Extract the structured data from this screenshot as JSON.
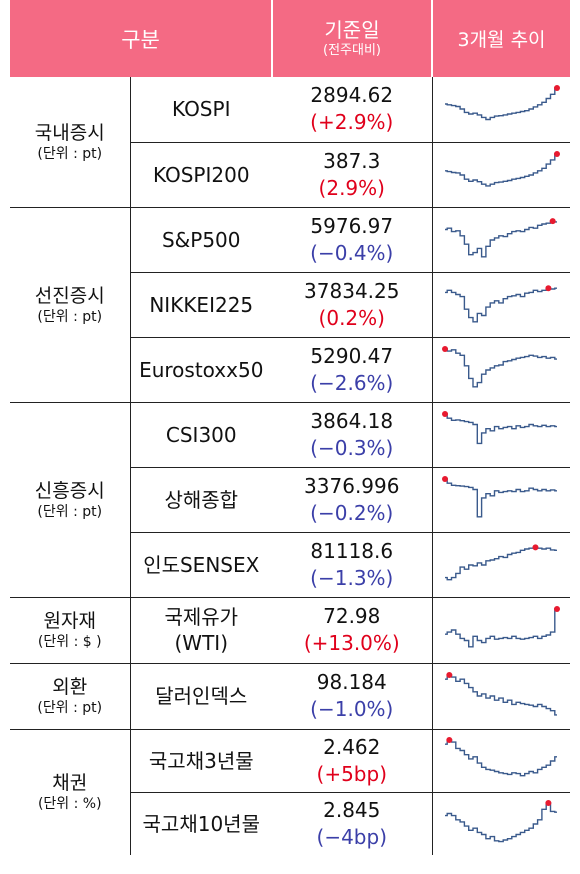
{
  "header": {
    "category": "구분",
    "base_date": "기준일",
    "base_date_sub": "(전주대비)",
    "trend": "3개월 추이"
  },
  "groups": [
    {
      "label": "국내증시",
      "unit": "(단위 : pt)"
    },
    {
      "label": "선진증시",
      "unit": "(단위 : pt)"
    },
    {
      "label": "신흥증시",
      "unit": "(단위 : pt)"
    },
    {
      "label": "원자재",
      "unit": "(단위 : $ )"
    },
    {
      "label": "외환",
      "unit": "(단위 : pt)"
    },
    {
      "label": "채권",
      "unit": "(단위 : %)"
    }
  ],
  "rows": [
    {
      "name": "KOSPI",
      "value": "2894.62",
      "change": "(+2.9%)",
      "dir": "up",
      "trend": [
        0.62,
        0.6,
        0.58,
        0.56,
        0.5,
        0.42,
        0.38,
        0.4,
        0.36,
        0.3,
        0.25,
        0.3,
        0.33,
        0.34,
        0.36,
        0.38,
        0.4,
        0.42,
        0.44,
        0.46,
        0.5,
        0.55,
        0.6,
        0.66,
        0.75,
        0.85,
        1.0
      ],
      "peak": "end"
    },
    {
      "name": "KOSPI200",
      "value": "387.3",
      "change": "(2.9%)",
      "dir": "up",
      "trend": [
        0.6,
        0.58,
        0.56,
        0.55,
        0.5,
        0.4,
        0.35,
        0.38,
        0.34,
        0.28,
        0.24,
        0.28,
        0.32,
        0.33,
        0.35,
        0.37,
        0.4,
        0.42,
        0.44,
        0.47,
        0.5,
        0.55,
        0.6,
        0.66,
        0.76,
        0.86,
        1.0
      ],
      "peak": "end"
    },
    {
      "name": "S&P500",
      "value": "5976.97",
      "change": "(−0.4%)",
      "dir": "down",
      "trend": [
        0.75,
        0.78,
        0.7,
        0.72,
        0.6,
        0.4,
        0.15,
        0.2,
        0.3,
        0.1,
        0.35,
        0.5,
        0.55,
        0.6,
        0.58,
        0.65,
        0.7,
        0.72,
        0.7,
        0.75,
        0.8,
        0.78,
        0.85,
        0.88,
        0.9,
        0.95,
        0.93
      ],
      "peak": "end"
    },
    {
      "name": "NIKKEI225",
      "value": "37834.25",
      "change": "(0.2%)",
      "dir": "up",
      "trend": [
        0.8,
        0.85,
        0.8,
        0.75,
        0.7,
        0.4,
        0.2,
        0.1,
        0.3,
        0.25,
        0.45,
        0.55,
        0.6,
        0.55,
        0.65,
        0.7,
        0.72,
        0.75,
        0.7,
        0.78,
        0.8,
        0.85,
        0.82,
        0.85,
        0.9,
        0.88,
        0.9
      ],
      "peak": "late"
    },
    {
      "name": "Eurostoxx50",
      "value": "5290.47",
      "change": "(−2.6%)",
      "dir": "down",
      "trend": [
        1.0,
        0.95,
        0.98,
        0.9,
        0.85,
        0.6,
        0.3,
        0.1,
        0.2,
        0.4,
        0.5,
        0.55,
        0.6,
        0.62,
        0.7,
        0.72,
        0.75,
        0.78,
        0.8,
        0.82,
        0.85,
        0.83,
        0.8,
        0.82,
        0.78,
        0.8,
        0.76
      ],
      "peak": "start"
    },
    {
      "name": "CSI300",
      "value": "3864.18",
      "change": "(−0.3%)",
      "dir": "down",
      "trend": [
        1.0,
        0.9,
        0.85,
        0.86,
        0.84,
        0.82,
        0.8,
        0.75,
        0.3,
        0.55,
        0.65,
        0.6,
        0.7,
        0.65,
        0.68,
        0.7,
        0.65,
        0.72,
        0.68,
        0.7,
        0.75,
        0.72,
        0.7,
        0.73,
        0.7,
        0.72,
        0.7
      ],
      "peak": "start"
    },
    {
      "name": "상해종합",
      "value": "3376.996",
      "change": "(−0.2%)",
      "dir": "down",
      "trend": [
        1.0,
        0.9,
        0.85,
        0.84,
        0.83,
        0.82,
        0.8,
        0.75,
        0.1,
        0.55,
        0.65,
        0.6,
        0.72,
        0.68,
        0.7,
        0.72,
        0.7,
        0.75,
        0.7,
        0.72,
        0.78,
        0.75,
        0.72,
        0.75,
        0.72,
        0.74,
        0.72
      ],
      "peak": "start"
    },
    {
      "name": "인도SENSEX",
      "value": "81118.6",
      "change": "(−1.3%)",
      "dir": "down",
      "trend": [
        0.2,
        0.15,
        0.2,
        0.3,
        0.45,
        0.4,
        0.5,
        0.48,
        0.55,
        0.5,
        0.6,
        0.62,
        0.65,
        0.7,
        0.68,
        0.75,
        0.78,
        0.8,
        0.85,
        0.88,
        0.9,
        0.92,
        0.9,
        0.88,
        0.9,
        0.86,
        0.85
      ],
      "peak": "late"
    },
    {
      "name": "국제유가\n(WTI)",
      "value": "72.98",
      "change": "(+13.0%)",
      "dir": "up",
      "trend": [
        0.4,
        0.45,
        0.5,
        0.4,
        0.3,
        0.25,
        0.1,
        0.35,
        0.25,
        0.2,
        0.3,
        0.35,
        0.28,
        0.3,
        0.32,
        0.3,
        0.35,
        0.3,
        0.28,
        0.3,
        0.32,
        0.35,
        0.3,
        0.35,
        0.38,
        0.45,
        1.0
      ],
      "peak": "end"
    },
    {
      "name": "달러인덱스",
      "value": "98.184",
      "change": "(−1.0%)",
      "dir": "down",
      "trend": [
        0.9,
        1.0,
        0.95,
        0.85,
        0.9,
        0.8,
        0.7,
        0.6,
        0.5,
        0.55,
        0.45,
        0.5,
        0.4,
        0.45,
        0.35,
        0.4,
        0.3,
        0.35,
        0.32,
        0.3,
        0.28,
        0.25,
        0.3,
        0.25,
        0.2,
        0.15,
        0.05
      ],
      "peak": "start"
    },
    {
      "name": "국고채3년물",
      "value": "2.462",
      "change": "(+5bp)",
      "dir": "up",
      "trend": [
        0.9,
        1.0,
        0.95,
        0.8,
        0.75,
        0.65,
        0.55,
        0.6,
        0.45,
        0.35,
        0.3,
        0.28,
        0.25,
        0.22,
        0.2,
        0.18,
        0.22,
        0.2,
        0.15,
        0.2,
        0.25,
        0.22,
        0.3,
        0.35,
        0.4,
        0.5,
        0.6
      ],
      "peak": "start"
    },
    {
      "name": "국고채10년물",
      "value": "2.845",
      "change": "(−4bp)",
      "dir": "down",
      "trend": [
        0.7,
        0.75,
        0.7,
        0.6,
        0.55,
        0.45,
        0.35,
        0.4,
        0.3,
        0.25,
        0.15,
        0.2,
        0.1,
        0.08,
        0.12,
        0.15,
        0.2,
        0.25,
        0.3,
        0.35,
        0.4,
        0.5,
        0.6,
        0.85,
        1.0,
        0.8,
        0.78
      ],
      "peak": "late"
    }
  ],
  "colors": {
    "header_bg": "#f46a84",
    "line": "#3a5a8c",
    "peak_dot": "#e81a2f",
    "up": "#e0001b",
    "down": "#3b3fa8"
  }
}
